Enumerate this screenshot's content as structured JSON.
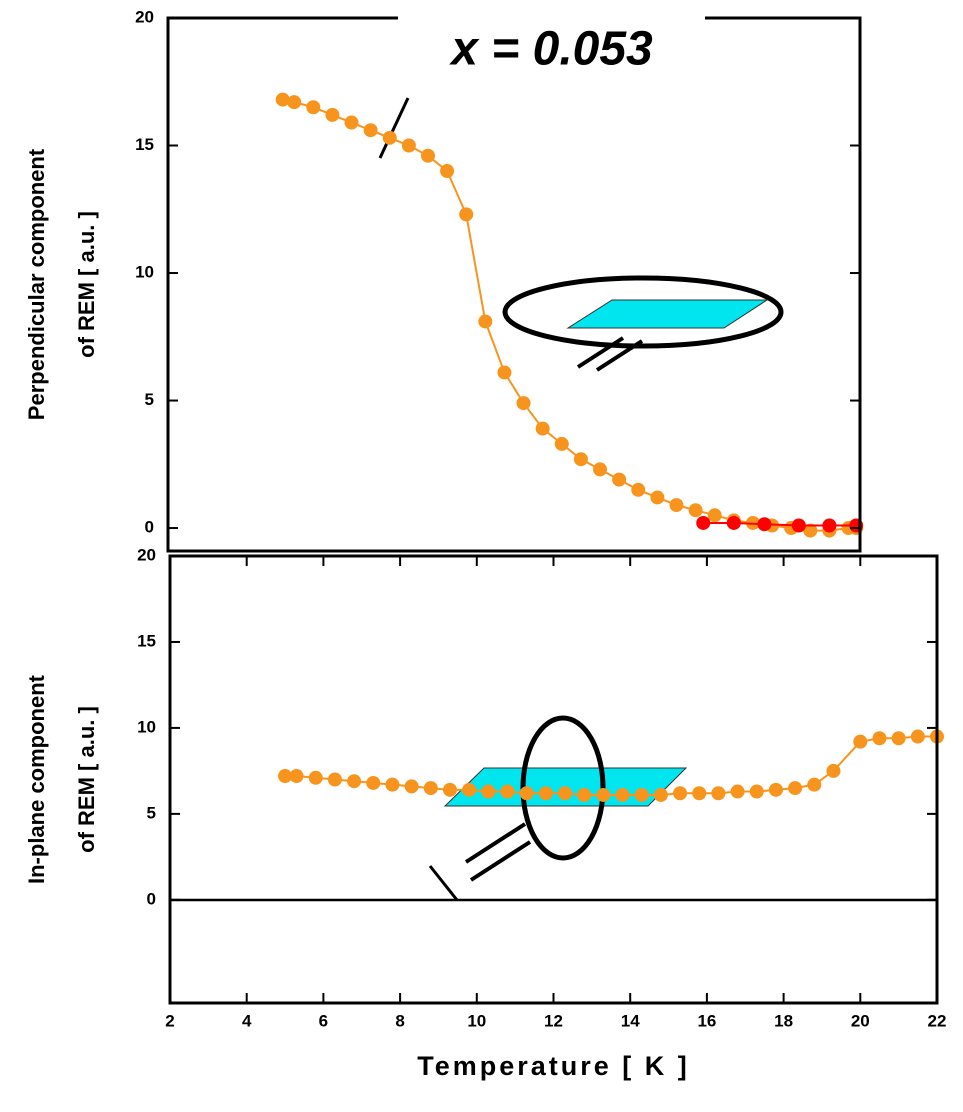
{
  "chart_data": [
    {
      "type": "line",
      "title": "x = 0.053",
      "ylabel": [
        "Perpendicular component",
        "of REM  [ a.u. ]"
      ],
      "xlim": [
        2,
        20.1
      ],
      "ylim": [
        -0.9,
        20
      ],
      "yticks": [
        0,
        5,
        10,
        15,
        20
      ],
      "series": [
        {
          "color": "#f7941d",
          "x": [
            5.0,
            5.3,
            5.8,
            6.3,
            6.8,
            7.3,
            7.8,
            8.3,
            8.8,
            9.3,
            9.8,
            10.3,
            10.8,
            11.3,
            11.8,
            12.3,
            12.8,
            13.3,
            13.8,
            14.3,
            14.8,
            15.3,
            15.8,
            16.3,
            16.8,
            17.3,
            17.8,
            18.3,
            18.8,
            19.3,
            19.8,
            20.0
          ],
          "values": [
            16.8,
            16.7,
            16.5,
            16.2,
            15.9,
            15.6,
            15.3,
            15.0,
            14.6,
            14.0,
            12.3,
            8.1,
            6.1,
            4.9,
            3.9,
            3.3,
            2.7,
            2.3,
            1.9,
            1.5,
            1.2,
            0.9,
            0.7,
            0.5,
            0.3,
            0.2,
            0.1,
            0.0,
            -0.1,
            -0.1,
            0.0,
            0.0
          ]
        },
        {
          "color": "#ff0000",
          "x": [
            16.0,
            16.8,
            17.6,
            18.5,
            19.3,
            20.0
          ],
          "values": [
            0.2,
            0.2,
            0.15,
            0.1,
            0.1,
            0.1
          ]
        }
      ]
    },
    {
      "type": "line",
      "ylabel": [
        "In-plane component",
        "of REM  [ a.u. ]"
      ],
      "xlabel": "Temperature  [ K ]",
      "xlim": [
        2,
        22
      ],
      "ylim": [
        -6,
        20
      ],
      "xticks": [
        2,
        4,
        6,
        8,
        10,
        12,
        14,
        16,
        18,
        20,
        22
      ],
      "yticks": [
        0,
        5,
        10,
        15,
        20
      ],
      "series": [
        {
          "color": "#f7941d",
          "x": [
            5.0,
            5.3,
            5.8,
            6.3,
            6.8,
            7.3,
            7.8,
            8.3,
            8.8,
            9.3,
            9.8,
            10.3,
            10.8,
            11.3,
            11.8,
            12.3,
            12.8,
            13.3,
            13.8,
            14.3,
            14.8,
            15.3,
            15.8,
            16.3,
            16.8,
            17.3,
            17.8,
            18.3,
            18.8,
            19.3,
            20.0,
            20.5,
            21.0,
            21.5,
            22.0
          ],
          "values": [
            7.2,
            7.2,
            7.1,
            7.0,
            6.9,
            6.8,
            6.7,
            6.6,
            6.5,
            6.4,
            6.4,
            6.3,
            6.3,
            6.2,
            6.2,
            6.2,
            6.1,
            6.1,
            6.1,
            6.1,
            6.1,
            6.2,
            6.2,
            6.2,
            6.3,
            6.3,
            6.4,
            6.5,
            6.7,
            7.5,
            9.2,
            9.4,
            9.4,
            9.5,
            9.5
          ]
        }
      ]
    }
  ]
}
